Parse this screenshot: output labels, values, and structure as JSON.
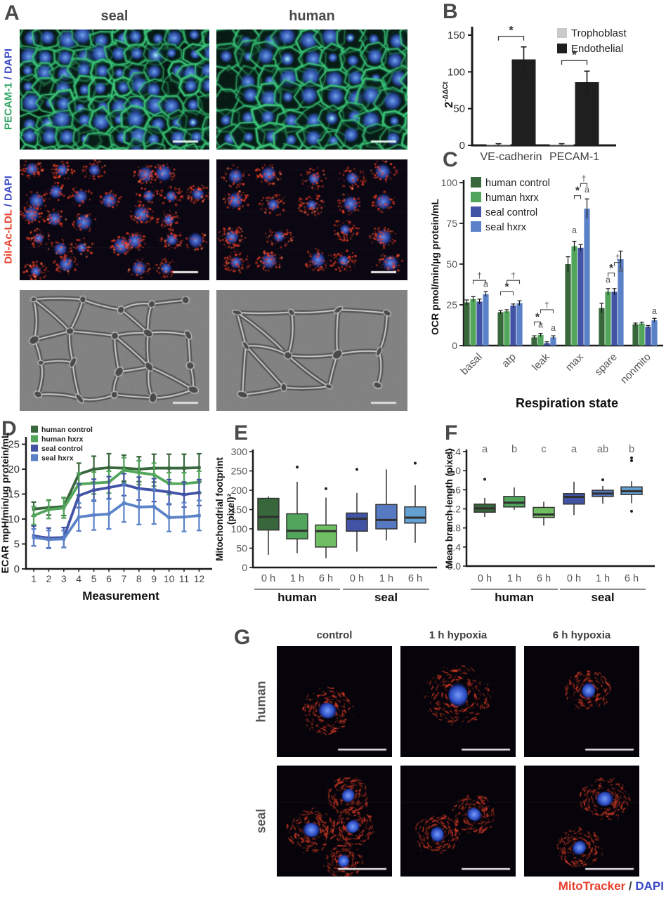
{
  "panelA": {
    "letter": "A",
    "col_labels": [
      "seal",
      "human"
    ],
    "row1_label": {
      "stain": "PECAM-1",
      "stain_color": "#2fa463",
      "sep": " / ",
      "sep_color": "#3b49c8",
      "counter": "DAPI",
      "counter_color": "#3b49c8"
    },
    "row2_label": {
      "stain": "DiI-Ac-LDL",
      "stain_color": "#e8402c",
      "sep": " / ",
      "sep_color": "#3b49c8",
      "counter": "DAPI",
      "counter_color": "#3b49c8"
    }
  },
  "panelG": {
    "letter": "G",
    "col_labels": [
      "control",
      "1 h hypoxia",
      "6 h hypoxia"
    ],
    "row_labels": [
      "human",
      "seal"
    ],
    "footer": {
      "stain": "MitoTracker",
      "stain_color": "#e8402c",
      "sep": " / ",
      "sep_color": "#444444",
      "counter": "DAPI",
      "counter_color": "#3b49c8"
    }
  },
  "panel_letters": {
    "B": "B",
    "C": "C",
    "D": "D",
    "E": "E",
    "F": "F"
  },
  "colors": {
    "human_control": "#38673C",
    "human_hxrx": "#52A65B",
    "seal_control": "#4253A5",
    "seal_hxrx": "#5B82C8",
    "trophoblast": "#c9c9c9",
    "endothelial": "#1f1f1f"
  },
  "chart_data": [
    {
      "panel": "B",
      "type": "bar",
      "ylabel_base": "2",
      "ylabel_sup": "-ΔΔCt",
      "categories": [
        "VE-cadherin",
        "PECAM-1"
      ],
      "series": [
        {
          "name": "Trophoblast",
          "color": "#c9c9c9",
          "values": [
            1.5,
            1.5
          ],
          "errors": [
            0.8,
            0.8
          ]
        },
        {
          "name": "Endothelial",
          "color": "#1f1f1f",
          "values": [
            117,
            86
          ],
          "errors": [
            17,
            15
          ]
        }
      ],
      "yticks": [
        0,
        50,
        100,
        150
      ],
      "ylim": [
        0,
        160
      ],
      "sig": [
        {
          "category": "VE-cadherin",
          "label": "*"
        },
        {
          "category": "PECAM-1",
          "label": "*"
        }
      ],
      "legend_position": "top-right"
    },
    {
      "panel": "C",
      "type": "bar",
      "ylabel": "OCR pmol/min/µg protein/mL",
      "xlabel": "Respiration state",
      "categories": [
        "basal",
        "atp",
        "leak",
        "max",
        "spare",
        "nonmito"
      ],
      "series": [
        {
          "name": "human control",
          "color": "#38673C",
          "values": [
            26.5,
            20.5,
            5,
            50,
            23,
            13
          ],
          "errors": [
            1.5,
            1,
            1,
            4.5,
            3,
            0.8
          ]
        },
        {
          "name": "human hxrx",
          "color": "#52A65B",
          "values": [
            28.5,
            21,
            6.5,
            61,
            33,
            13.5
          ],
          "errors": [
            1.5,
            1,
            1,
            3,
            2,
            0.8
          ]
        },
        {
          "name": "seal control",
          "color": "#4253A5",
          "values": [
            27,
            24.5,
            1.5,
            60,
            33,
            11.5
          ],
          "errors": [
            1.5,
            1,
            0.8,
            2,
            2,
            0.8
          ]
        },
        {
          "name": "seal hxrx",
          "color": "#5B82C8",
          "values": [
            31.5,
            26,
            5,
            84,
            53,
            15.5
          ],
          "errors": [
            1.5,
            1.5,
            1,
            6,
            5,
            1.2
          ]
        }
      ],
      "yticks": [
        0,
        25,
        50,
        75,
        100
      ],
      "ylim": [
        0,
        105
      ],
      "legend_position": "top-left",
      "annotations": [
        {
          "category": "basal",
          "kind": "bracket",
          "from_series": 1,
          "to_series": 3,
          "symbol": "†",
          "y": 40
        },
        {
          "category": "basal",
          "kind": "letter",
          "series": 3,
          "symbol": "a",
          "y": 36
        },
        {
          "category": "atp",
          "kind": "bracket",
          "from_series": 0,
          "to_series": 2,
          "symbol": "*",
          "y": 33
        },
        {
          "category": "atp",
          "kind": "bracket",
          "from_series": 1,
          "to_series": 3,
          "symbol": "†",
          "y": 40
        },
        {
          "category": "leak",
          "kind": "bracket",
          "from_series": 0,
          "to_series": 1,
          "symbol": "*",
          "y": 14.5
        },
        {
          "category": "leak",
          "kind": "letter",
          "series": 1,
          "symbol": "a",
          "y": 11
        },
        {
          "category": "leak",
          "kind": "bracket",
          "from_series": 1,
          "to_series": 3,
          "symbol": "†",
          "y": 22
        },
        {
          "category": "leak",
          "kind": "letter",
          "series": 3,
          "symbol": "a",
          "y": 9
        },
        {
          "category": "max",
          "kind": "letter",
          "series": 1,
          "symbol": "a",
          "y": 69
        },
        {
          "category": "max",
          "kind": "bracket",
          "from_series": 1,
          "to_series": 2,
          "symbol": "*",
          "y": 92
        },
        {
          "category": "max",
          "kind": "bracket",
          "from_series": 2,
          "to_series": 3,
          "symbol": "†",
          "y": 99.5
        },
        {
          "category": "max",
          "kind": "letter",
          "series": 3,
          "symbol": "a",
          "y": 94
        },
        {
          "category": "spare",
          "kind": "letter",
          "series": 1,
          "symbol": "a",
          "y": 38.5
        },
        {
          "category": "spare",
          "kind": "bracket",
          "from_series": 1,
          "to_series": 2,
          "symbol": "*",
          "y": 44.5
        },
        {
          "category": "spare",
          "kind": "bracket",
          "from_series": 2,
          "to_series": 3,
          "symbol": "†",
          "y": 51
        },
        {
          "category": "spare",
          "kind": "letter",
          "series": 3,
          "symbol": "a",
          "y": 45
        },
        {
          "category": "nonmito",
          "kind": "letter",
          "series": 3,
          "symbol": "a",
          "y": 19.5
        }
      ]
    },
    {
      "panel": "D",
      "type": "line",
      "ylabel": "ECAR mpH/min/ug protein/mL",
      "xlabel": "Measurement",
      "x": [
        1,
        2,
        3,
        4,
        5,
        6,
        7,
        8,
        9,
        10,
        11,
        12
      ],
      "yticks": [
        0,
        5,
        10,
        15,
        20,
        25
      ],
      "ylim": [
        0,
        26
      ],
      "legend_position": "top-left",
      "series": [
        {
          "name": "human control",
          "color": "#38673C",
          "values": [
            12,
            12.3,
            12.5,
            19,
            20,
            20.3,
            20.2,
            20,
            20.2,
            20.2,
            20.2,
            20.3
          ],
          "errors": [
            1.4,
            1.5,
            1.8,
            2.2,
            2.6,
            2.8,
            2.6,
            2.5,
            2.8,
            2.8,
            2.8,
            2.8
          ]
        },
        {
          "name": "human hxrx",
          "color": "#52A65B",
          "values": [
            10.7,
            11.9,
            12.2,
            17,
            17.2,
            17.4,
            19.8,
            19.3,
            18.9,
            17.1,
            17.1,
            17.4
          ],
          "errors": [
            1.8,
            1.8,
            2,
            2.2,
            2.2,
            2.2,
            2.5,
            2.4,
            2.3,
            2.2,
            2.2,
            2.2
          ]
        },
        {
          "name": "seal control",
          "color": "#4253A5",
          "values": [
            6.6,
            6.2,
            6.3,
            14.7,
            15.8,
            16.3,
            16.9,
            16.1,
            15.8,
            15.4,
            14.9,
            15.3
          ],
          "errors": [
            2,
            2,
            2,
            2.4,
            2.2,
            2.2,
            2.2,
            2.3,
            2.3,
            2.5,
            2.5,
            2.6
          ]
        },
        {
          "name": "seal hxrx",
          "color": "#5B82C8",
          "values": [
            6.3,
            5.9,
            6,
            10.4,
            10.8,
            11,
            13.2,
            12.4,
            12.5,
            10.3,
            10.4,
            10.7
          ],
          "errors": [
            1.7,
            1.8,
            1.7,
            2.8,
            3,
            3,
            3.8,
            3.5,
            3.5,
            2.8,
            2.9,
            3
          ]
        }
      ]
    },
    {
      "panel": "E",
      "type": "box",
      "ylabel_lines": [
        "Mitochondrial footprint",
        "(pixel)²"
      ],
      "yticks": [
        0,
        50,
        100,
        150,
        200,
        250,
        300
      ],
      "ylim": [
        0,
        310
      ],
      "groups": [
        "human",
        "seal"
      ],
      "categories": [
        "0 h",
        "1 h",
        "6 h",
        "0 h",
        "1 h",
        "6 h"
      ],
      "boxes": [
        {
          "group": "human",
          "time": "0 h",
          "color": "#38673C",
          "low": 33,
          "q1": 97,
          "median": 131,
          "q3": 179,
          "high": 184,
          "outliers": []
        },
        {
          "group": "human",
          "time": "1 h",
          "color": "#52A65B",
          "low": 37,
          "q1": 74,
          "median": 95,
          "q3": 139,
          "high": 222,
          "outliers": [
            260
          ]
        },
        {
          "group": "human",
          "time": "6 h",
          "color": "#6FBE63",
          "low": 24,
          "q1": 53,
          "median": 94,
          "q3": 110,
          "high": 181,
          "outliers": [
            204
          ]
        },
        {
          "group": "seal",
          "time": "0 h",
          "color": "#4253A5",
          "low": 41,
          "q1": 94,
          "median": 126,
          "q3": 141,
          "high": 193,
          "outliers": [
            254
          ]
        },
        {
          "group": "seal",
          "time": "1 h",
          "color": "#5679C1",
          "low": 70,
          "q1": 100,
          "median": 123,
          "q3": 163,
          "high": 254,
          "outliers": []
        },
        {
          "group": "seal",
          "time": "6 h",
          "color": "#64A0D2",
          "low": 64,
          "q1": 115,
          "median": 129,
          "q3": 157,
          "high": 213,
          "outliers": [
            270
          ]
        }
      ]
    },
    {
      "panel": "F",
      "type": "box",
      "ylabel_lines": [
        "Mean branch length (pixel)"
      ],
      "yticks": [
        0,
        0.4,
        0.8,
        1.2,
        1.6,
        2,
        2.4
      ],
      "ylim": [
        0,
        2.5
      ],
      "tick_decimals": 1,
      "groups": [
        "human",
        "seal"
      ],
      "categories": [
        "0 h",
        "1 h",
        "6 h",
        "0 h",
        "1 h",
        "6 h"
      ],
      "letters": [
        "a",
        "b",
        "c",
        "a",
        "ab",
        "b"
      ],
      "boxes": [
        {
          "group": "human",
          "time": "0 h",
          "color": "#38673C",
          "low": 1.03,
          "q1": 1.13,
          "median": 1.21,
          "q3": 1.3,
          "high": 1.43,
          "outliers": [
            1.82
          ]
        },
        {
          "group": "human",
          "time": "1 h",
          "color": "#52A65B",
          "low": 1.18,
          "q1": 1.24,
          "median": 1.33,
          "q3": 1.46,
          "high": 1.65,
          "outliers": []
        },
        {
          "group": "human",
          "time": "6 h",
          "color": "#6FBE63",
          "low": 0.85,
          "q1": 1.02,
          "median": 1.08,
          "q3": 1.23,
          "high": 1.35,
          "outliers": []
        },
        {
          "group": "seal",
          "time": "0 h",
          "color": "#4253A5",
          "low": 1.07,
          "q1": 1.3,
          "median": 1.45,
          "q3": 1.52,
          "high": 1.77,
          "outliers": []
        },
        {
          "group": "seal",
          "time": "1 h",
          "color": "#5679C1",
          "low": 1.31,
          "q1": 1.46,
          "median": 1.52,
          "q3": 1.59,
          "high": 1.68,
          "outliers": [
            1.81
          ]
        },
        {
          "group": "seal",
          "time": "6 h",
          "color": "#64A0D2",
          "low": 1.32,
          "q1": 1.5,
          "median": 1.57,
          "q3": 1.66,
          "high": 1.78,
          "outliers": [
            1.15,
            2.21,
            2.27
          ]
        }
      ]
    }
  ]
}
